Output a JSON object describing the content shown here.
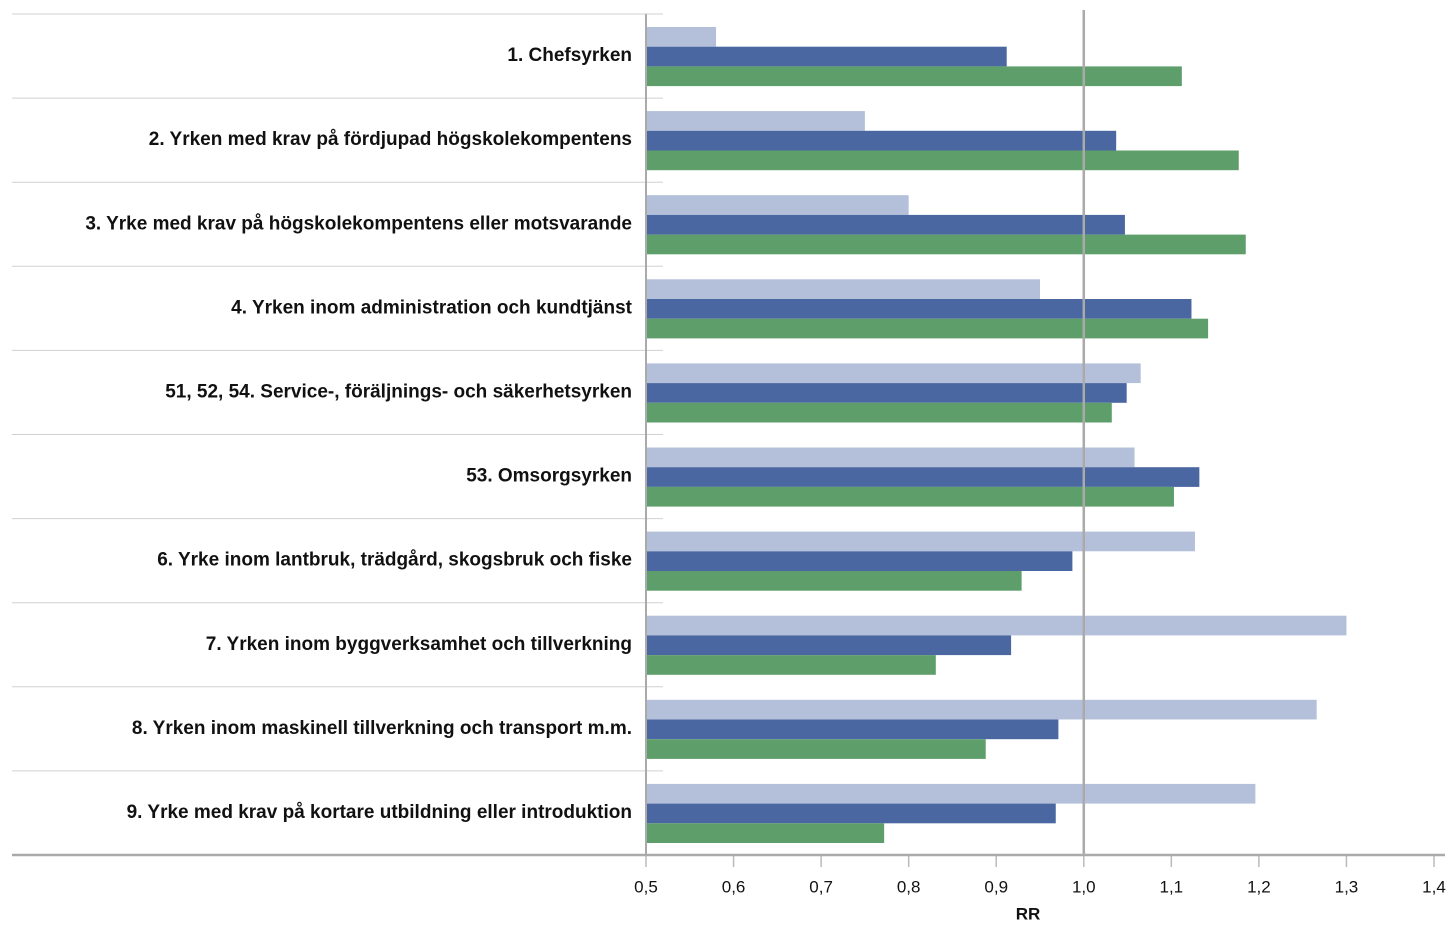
{
  "chart_data": {
    "type": "barh",
    "xlabel": "RR",
    "categories": [
      "1. Chefsyrken",
      "2. Yrken med krav på fördjupad högskolekompentens",
      "3. Yrke med krav på högskolekompentens eller motsvarande",
      "4. Yrken inom administration och kundtjänst",
      "51, 52, 54. Service-, föräljnings- och säkerhetsyrken",
      "53. Omsorgsyrken",
      "6. Yrke inom lantbruk, trädgård, skogsbruk och fiske",
      "7. Yrken inom byggverksamhet och tillverkning",
      "8. Yrken inom maskinell tillverkning och transport m.m.",
      "9. Yrke med krav på kortare utbildning eller introduktion"
    ],
    "series": [
      {
        "color": "#b4c0da",
        "values": [
          0.58,
          0.75,
          0.8,
          0.95,
          1.065,
          1.058,
          1.127,
          1.3,
          1.266,
          1.196
        ]
      },
      {
        "color": "#4a67a1",
        "values": [
          0.912,
          1.037,
          1.047,
          1.123,
          1.049,
          1.132,
          0.987,
          0.917,
          0.971,
          0.968
        ]
      },
      {
        "color": "#5e9e6b",
        "values": [
          1.112,
          1.177,
          1.185,
          1.142,
          1.032,
          1.103,
          0.929,
          0.831,
          0.888,
          0.772
        ]
      }
    ],
    "xlim": [
      0.5,
      1.4
    ],
    "xticks": [
      {
        "value": 0.5,
        "label": "0,5"
      },
      {
        "value": 0.6,
        "label": "0,6"
      },
      {
        "value": 0.7,
        "label": "0,7"
      },
      {
        "value": 0.8,
        "label": "0,8"
      },
      {
        "value": 0.9,
        "label": "0,9"
      },
      {
        "value": 1.0,
        "label": "1,0"
      },
      {
        "value": 1.1,
        "label": "1,1"
      },
      {
        "value": 1.2,
        "label": "1,2"
      },
      {
        "value": 1.3,
        "label": "1,3"
      },
      {
        "value": 1.4,
        "label": "1,4"
      }
    ],
    "reference_line": 1.0
  }
}
